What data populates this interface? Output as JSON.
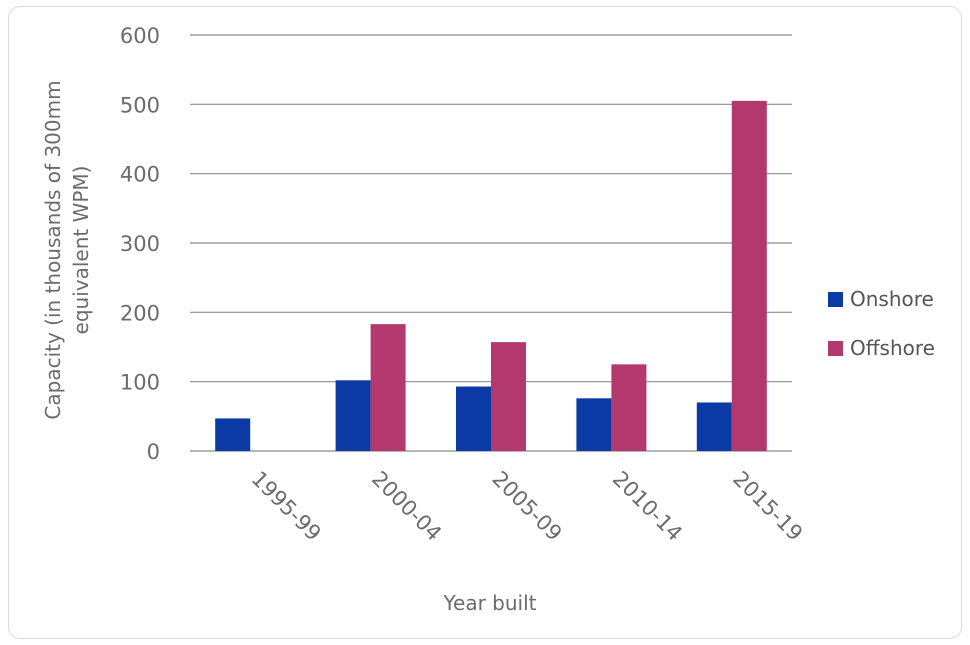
{
  "chart_data": {
    "type": "bar",
    "categories": [
      "1995-99",
      "2000-04",
      "2005-09",
      "2010-14",
      "2015-19"
    ],
    "series": [
      {
        "name": "Onshore",
        "color": "#0b3aa5",
        "values": [
          47,
          102,
          93,
          76,
          70
        ]
      },
      {
        "name": "Offshore",
        "color": "#b3386e",
        "values": [
          null,
          183,
          157,
          125,
          505
        ]
      }
    ],
    "xlabel": "Year built",
    "ylabel_lines": [
      "Capacity (in thousands of 300mm",
      "equivalent WPM)"
    ],
    "ylim": [
      0,
      600
    ],
    "yticks": [
      0,
      100,
      200,
      300,
      400,
      500,
      600
    ],
    "grid": true,
    "legend_position": "right"
  }
}
